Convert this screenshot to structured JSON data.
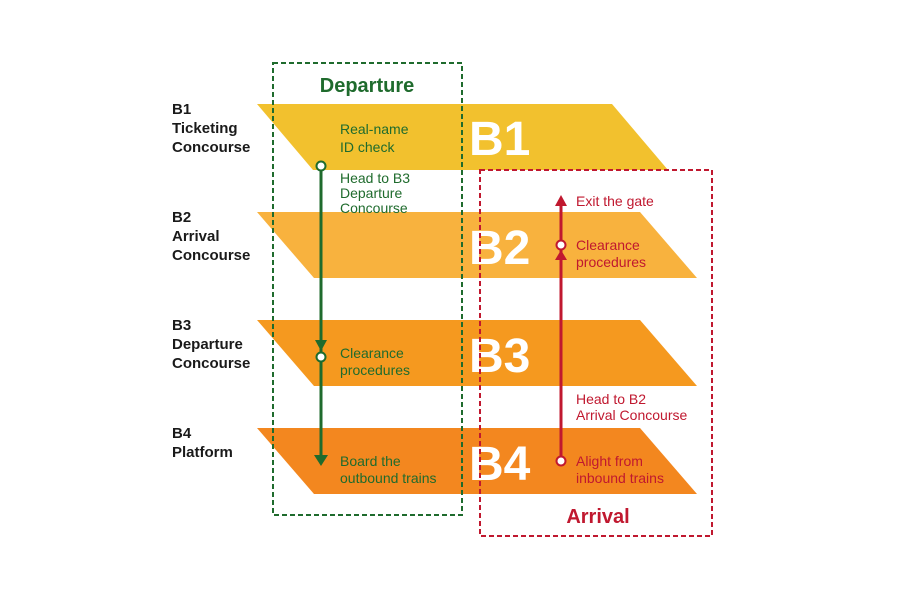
{
  "levels": [
    {
      "code": "B1",
      "label_lines": [
        "B1",
        "Ticketing",
        "Concourse"
      ],
      "color": "#f2c12e"
    },
    {
      "code": "B2",
      "label_lines": [
        "B2",
        "Arrival",
        "Concourse"
      ],
      "color": "#f8b23e"
    },
    {
      "code": "B3",
      "label_lines": [
        "B3",
        "Departure",
        "Concourse"
      ],
      "color": "#f5991f"
    },
    {
      "code": "B4",
      "label_lines": [
        "B4",
        "Platform"
      ],
      "color": "#f3871f"
    }
  ],
  "departure": {
    "title": "Departure",
    "color": "#1f6b2d",
    "steps": {
      "id_check": [
        "Real-name",
        "ID check"
      ],
      "head_to_b3": [
        "Head to B3",
        "Departure",
        "Concourse"
      ],
      "clearance": [
        "Clearance",
        "procedures"
      ],
      "board": [
        "Board the",
        "outbound trains"
      ]
    }
  },
  "arrival": {
    "title": "Arrival",
    "color": "#c0182f",
    "steps": {
      "exit_gate": [
        "Exit the gate"
      ],
      "clearance": [
        "Clearance",
        "procedures"
      ],
      "head_to_b2": [
        "Head to B2",
        "Arrival Concourse"
      ],
      "alight": [
        "Alight from",
        "inbound trains"
      ]
    }
  }
}
